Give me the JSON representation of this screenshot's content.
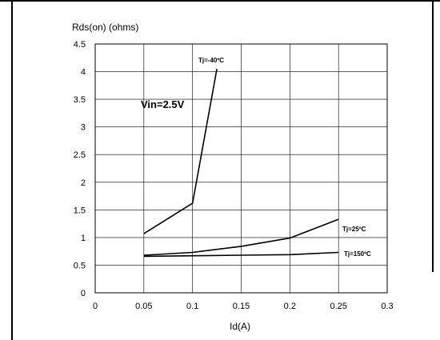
{
  "chart_data": {
    "type": "line",
    "ylabel": "Rds(on) (ohms)",
    "xlabel": "Id(A)",
    "annotation": "Vin=2.5V",
    "xlim": [
      0,
      0.3
    ],
    "ylim": [
      0,
      4.5
    ],
    "x_ticks": [
      "0",
      "0.05",
      "0.1",
      "0.15",
      "0.2",
      "0.25",
      "0.3"
    ],
    "y_ticks": [
      "0",
      "0.5",
      "1",
      "1.5",
      "2",
      "2.5",
      "3",
      "3.5",
      "4",
      "4.5"
    ],
    "grid": true,
    "series": [
      {
        "name": "Tj=-40ºC",
        "x": [
          0.05,
          0.1,
          0.125
        ],
        "y": [
          1.07,
          1.62,
          4.05
        ]
      },
      {
        "name": "Tj=25ºC",
        "x": [
          0.05,
          0.1,
          0.15,
          0.2,
          0.25
        ],
        "y": [
          0.68,
          0.73,
          0.84,
          0.99,
          1.33
        ]
      },
      {
        "name": "Tj=150ºC",
        "x": [
          0.05,
          0.1,
          0.15,
          0.2,
          0.25
        ],
        "y": [
          0.66,
          0.67,
          0.68,
          0.69,
          0.73
        ]
      }
    ]
  }
}
